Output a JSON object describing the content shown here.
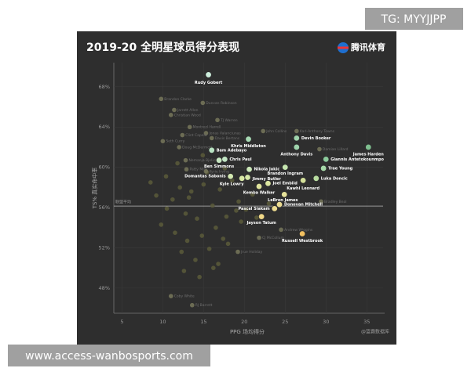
{
  "watermark_top": "TG: MYYJJPP",
  "watermark_bottom": "www.access-wanbosports.com",
  "logo": "腾讯体育",
  "chart_data": {
    "type": "scatter",
    "title": "2019-20 全明星球员得分表现",
    "x_label": "PPG 场均得分",
    "y_label": "TS% 真实命中率",
    "source": "@篮霸数据库",
    "xlim": [
      4,
      37
    ],
    "ylim": [
      45.5,
      70.4
    ],
    "xticks": [
      5,
      10,
      15,
      20,
      25,
      30,
      35
    ],
    "yticks": [
      {
        "value": 48,
        "label": "48%"
      },
      {
        "value": 52,
        "label": "52%"
      },
      {
        "value": 56,
        "label": "56%"
      },
      {
        "value": 60,
        "label": "60%"
      },
      {
        "value": 64,
        "label": "64%"
      },
      {
        "value": 68,
        "label": "68%"
      }
    ],
    "average": 56.15,
    "average_label": "联盟平均",
    "series": [
      {
        "color": "#5a5a3a",
        "x": [
          8.5,
          9.2,
          10.4,
          11.2,
          12.1,
          12.8,
          13.5,
          14.2,
          15.0,
          16.1,
          17.0,
          17.8,
          18.5,
          19.3,
          20.2,
          21.0,
          9.8,
          11.5,
          13.0,
          14.8,
          16.5,
          18.0,
          19.6,
          21.5,
          23.0,
          10.5,
          12.3,
          14.0,
          15.7,
          17.4,
          12.6,
          14.5,
          16.8,
          19.0,
          13.2,
          15.4,
          17.6,
          11.8,
          14.9,
          16.2
        ],
        "values": [
          58.5,
          57.2,
          59.1,
          56.8,
          58.0,
          55.4,
          57.6,
          54.9,
          58.3,
          56.2,
          57.8,
          55.1,
          58.7,
          56.6,
          55.8,
          57.3,
          54.3,
          53.5,
          52.7,
          53.2,
          54.0,
          52.4,
          54.6,
          55.0,
          56.4,
          55.9,
          51.6,
          50.8,
          51.9,
          52.9,
          49.7,
          49.1,
          50.4,
          55.7,
          57.0,
          59.5,
          59.9,
          60.4,
          61.2,
          50.0
        ]
      },
      {
        "color": "#77775a",
        "labels": [
          "Brandon Clarke",
          "Duncan Robinson",
          "Jarrett Allen",
          "Christian Wood",
          "TJ Warren",
          "Montrezl Harrell",
          "John Collins",
          "Karl-Anthony Towns",
          "Jonas Valanciunas",
          "Clint Capela",
          "Davis Bertans",
          "Seth Curry",
          "Doug McDermott",
          "Damian Lillard",
          "Nemanja Bjelica",
          "Patty Mills",
          "Kyrie Irving",
          "Bradley Beal",
          "Andrew Wiggins",
          "CJ McCollum",
          "Jrue Holiday",
          "RJ Barrett",
          "Coby White"
        ],
        "x": [
          9.8,
          14.9,
          11.4,
          11.0,
          16.7,
          13.3,
          22.3,
          26.4,
          15.3,
          12.4,
          16.0,
          10.0,
          12.0,
          29.2,
          12.8,
          12.9,
          15.3,
          29.4,
          24.5,
          21.8,
          19.2,
          13.6,
          11.0
        ],
        "values": [
          66.8,
          66.4,
          65.7,
          65.2,
          64.7,
          64.0,
          63.6,
          63.6,
          63.4,
          63.2,
          62.9,
          62.6,
          62.0,
          61.8,
          60.7,
          59.8,
          59.6,
          56.6,
          53.8,
          53.0,
          51.6,
          46.3,
          47.2
        ]
      },
      {
        "labels": [
          "Rudy Gobert",
          "Devin Booker",
          "James Harden",
          "Khris Middleton",
          "Anthony Davis",
          "Giannis Antetokounmpo",
          "Bam Adebayo",
          "Chris Paul",
          "Ben Simmons",
          "Trae Young",
          "Nikola Jokic",
          "Brandon Ingram",
          "Domantas Sabonis",
          "Jimmy Butler",
          "Kyle Lowry",
          "Luka Doncic",
          "Joel Embiid",
          "Kemba Walker",
          "Kawhi Leonard",
          "LeBron James",
          "Pascal Siakam",
          "Donovan Mitchell",
          "Jayson Tatum",
          "Russell Westbrook"
        ],
        "x": [
          15.6,
          26.4,
          35.2,
          20.5,
          26.4,
          30.0,
          16.0,
          17.6,
          16.9,
          29.7,
          20.6,
          25.0,
          18.3,
          20.4,
          19.7,
          28.8,
          22.9,
          21.8,
          27.2,
          24.9,
          23.7,
          24.3,
          22.1,
          27.1
        ],
        "values": [
          69.2,
          62.9,
          62.0,
          62.8,
          62.0,
          60.8,
          61.7,
          60.8,
          60.7,
          59.9,
          59.8,
          60.0,
          59.1,
          59.0,
          58.9,
          58.9,
          58.4,
          58.1,
          58.7,
          57.3,
          55.9,
          56.3,
          55.1,
          53.4
        ],
        "colors": [
          "#cdeedc",
          "#9fd4ac",
          "#7fbf8f",
          "#a8dab4",
          "#9fd4ac",
          "#8ccb9c",
          "#b8e2c2",
          "#c2e6c4",
          "#c6e6c0",
          "#a6d8a8",
          "#cce8b8",
          "#c6e6b0",
          "#d2e8b0",
          "#d6e8a8",
          "#d8e8a4",
          "#b8dca0",
          "#dce6a0",
          "#e0e49c",
          "#d4e09a",
          "#e6e29a",
          "#eedc90",
          "#ecdc92",
          "#f0d888",
          "#f2c060"
        ]
      }
    ]
  }
}
